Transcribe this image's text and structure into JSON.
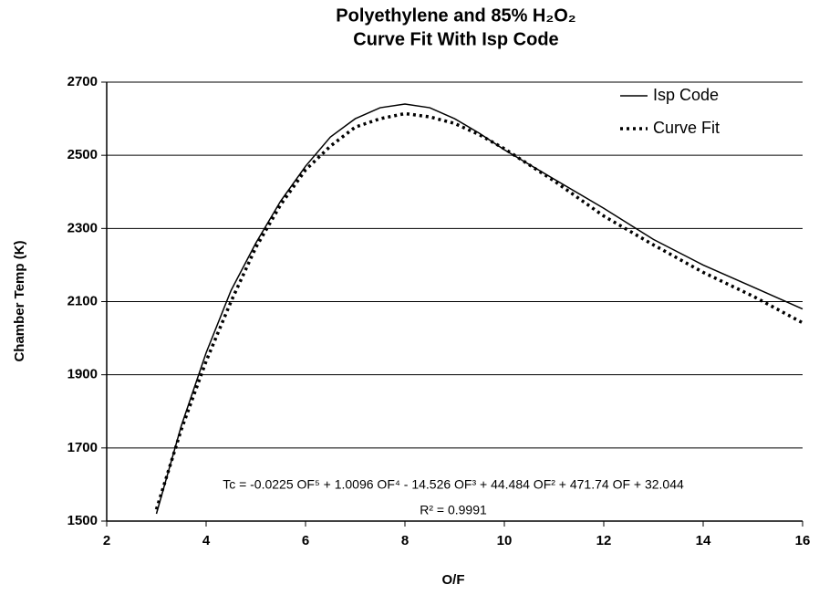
{
  "chart_data": {
    "type": "line",
    "title": "Polyethylene and 85% H₂O₂",
    "subtitle": "Curve Fit With Isp Code",
    "x_label": "O/F",
    "y_label": "Chamber Temp (K)",
    "x": [
      3,
      3.5,
      4,
      4.5,
      5,
      5.5,
      6,
      6.5,
      7,
      7.5,
      8,
      8.5,
      9,
      9.5,
      10,
      11,
      12,
      13,
      14,
      15,
      16
    ],
    "series": [
      {
        "name": "Isp Code",
        "color": "#000000",
        "style": "solid",
        "values": [
          1520,
          1760,
          1960,
          2130,
          2260,
          2375,
          2470,
          2550,
          2600,
          2630,
          2640,
          2630,
          2600,
          2560,
          2515,
          2435,
          2355,
          2270,
          2200,
          2140,
          2080
        ]
      },
      {
        "name": "Curve Fit",
        "color": "#000000",
        "style": "dotted",
        "values": [
          1532,
          1750,
          1937,
          2100,
          2248,
          2365,
          2460,
          2525,
          2577,
          2600,
          2614,
          2605,
          2587,
          2556,
          2518,
          2430,
          2334,
          2255,
          2180,
          2115,
          2042
        ]
      }
    ],
    "xlim": [
      2,
      16
    ],
    "xticks": [
      2,
      4,
      6,
      8,
      10,
      12,
      14,
      16
    ],
    "ylim": [
      1500,
      2700
    ],
    "yticks": [
      1500,
      1700,
      1900,
      2100,
      2300,
      2500,
      2700
    ],
    "grid": true,
    "legend": "upper right",
    "annotations": [
      "Tc = -0.0225 OF⁵ + 1.0096 OF⁴ - 14.526 OF³ + 44.484 OF² + 471.74 OF + 32.044",
      "R² = 0.9991"
    ]
  }
}
